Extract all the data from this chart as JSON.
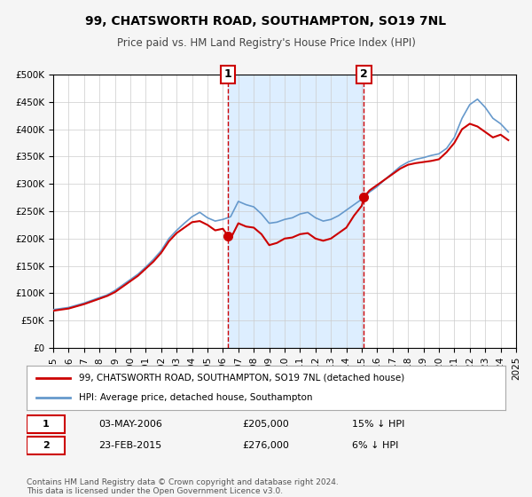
{
  "title": "99, CHATSWORTH ROAD, SOUTHAMPTON, SO19 7NL",
  "subtitle": "Price paid vs. HM Land Registry's House Price Index (HPI)",
  "legend_line1": "99, CHATSWORTH ROAD, SOUTHAMPTON, SO19 7NL (detached house)",
  "legend_line2": "HPI: Average price, detached house, Southampton",
  "footnote1": "Contains HM Land Registry data © Crown copyright and database right 2024.",
  "footnote2": "This data is licensed under the Open Government Licence v3.0.",
  "marker1_date": "03-MAY-2006",
  "marker1_price": "£205,000",
  "marker1_hpi": "15% ↓ HPI",
  "marker2_date": "23-FEB-2015",
  "marker2_price": "£276,000",
  "marker2_hpi": "6% ↓ HPI",
  "marker1_x": 2006.34,
  "marker1_y": 205000,
  "marker2_x": 2015.14,
  "marker2_y": 276000,
  "vline1_x": 2006.34,
  "vline2_x": 2015.14,
  "shade_color": "#ddeeff",
  "vline_color": "#cc0000",
  "hpi_color": "#6699cc",
  "price_color": "#cc0000",
  "marker_color": "#cc0000",
  "ylim": [
    0,
    500000
  ],
  "xlim": [
    1995,
    2025
  ],
  "background_color": "#f5f5f5",
  "plot_bg_color": "#ffffff",
  "grid_color": "#cccccc"
}
